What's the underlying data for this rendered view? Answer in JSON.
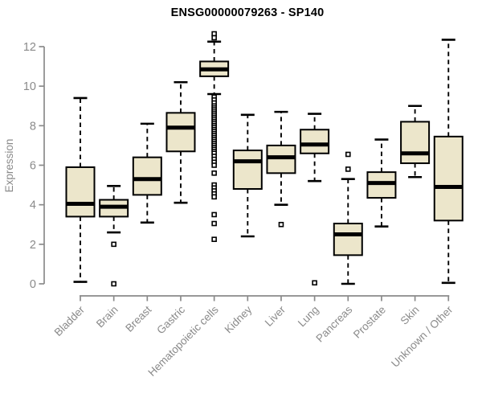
{
  "chart_data": {
    "type": "boxplot",
    "title": "ENSG00000079263 - SP140",
    "ylabel": "Expression",
    "xlabel": "",
    "ylim": [
      -0.2,
      12.8
    ],
    "yticks": [
      0,
      2,
      4,
      6,
      8,
      10,
      12
    ],
    "grid": false,
    "legend": false,
    "box_fill": "#ece6cb",
    "box_stroke": "#000000",
    "axis_color": "#8a8a8a",
    "categories": [
      "Bladder",
      "Brain",
      "Breast",
      "Gastric",
      "Hematopoietic cells",
      "Kidney",
      "Liver",
      "Lung",
      "Pancreas",
      "Prostate",
      "Skin",
      "Unknown / Other"
    ],
    "boxes": [
      {
        "category": "Bladder",
        "whisker_low": 0.1,
        "q1": 3.4,
        "median": 4.05,
        "q3": 5.9,
        "whisker_high": 9.4,
        "outliers": []
      },
      {
        "category": "Brain",
        "whisker_low": 2.6,
        "q1": 3.4,
        "median": 3.9,
        "q3": 4.25,
        "whisker_high": 4.95,
        "outliers": [
          2.0,
          0.0
        ]
      },
      {
        "category": "Breast",
        "whisker_low": 3.1,
        "q1": 4.5,
        "median": 5.3,
        "q3": 6.4,
        "whisker_high": 8.1,
        "outliers": []
      },
      {
        "category": "Gastric",
        "whisker_low": 4.1,
        "q1": 6.7,
        "median": 7.9,
        "q3": 8.65,
        "whisker_high": 10.2,
        "outliers": []
      },
      {
        "category": "Hematopoietic cells",
        "whisker_low": 9.6,
        "q1": 10.5,
        "median": 10.85,
        "q3": 11.25,
        "whisker_high": 12.25,
        "outliers": [
          12.65,
          12.45,
          9.45,
          9.3,
          9.15,
          9.0,
          8.9,
          8.8,
          8.7,
          8.6,
          8.5,
          8.4,
          8.3,
          8.2,
          8.1,
          8.0,
          7.9,
          7.8,
          7.7,
          7.6,
          7.5,
          7.4,
          7.3,
          7.2,
          7.1,
          7.0,
          6.9,
          6.8,
          6.7,
          6.6,
          6.45,
          6.3,
          6.15,
          6.0,
          5.6,
          5.0,
          4.85,
          4.7,
          4.55,
          4.4,
          3.5,
          3.05,
          2.25
        ]
      },
      {
        "category": "Kidney",
        "whisker_low": 2.4,
        "q1": 4.8,
        "median": 6.2,
        "q3": 6.75,
        "whisker_high": 8.55,
        "outliers": []
      },
      {
        "category": "Liver",
        "whisker_low": 4.0,
        "q1": 5.6,
        "median": 6.4,
        "q3": 7.0,
        "whisker_high": 8.7,
        "outliers": [
          3.0
        ]
      },
      {
        "category": "Lung",
        "whisker_low": 5.2,
        "q1": 6.6,
        "median": 7.05,
        "q3": 7.8,
        "whisker_high": 8.6,
        "outliers": [
          0.05
        ]
      },
      {
        "category": "Pancreas",
        "whisker_low": 0.0,
        "q1": 1.45,
        "median": 2.5,
        "q3": 3.05,
        "whisker_high": 5.3,
        "outliers": [
          6.55,
          5.8
        ]
      },
      {
        "category": "Prostate",
        "whisker_low": 2.9,
        "q1": 4.35,
        "median": 5.1,
        "q3": 5.65,
        "whisker_high": 7.3,
        "outliers": []
      },
      {
        "category": "Skin",
        "whisker_low": 5.4,
        "q1": 6.1,
        "median": 6.6,
        "q3": 8.2,
        "whisker_high": 9.0,
        "outliers": []
      },
      {
        "category": "Unknown / Other",
        "whisker_low": 0.05,
        "q1": 3.2,
        "median": 4.9,
        "q3": 7.45,
        "whisker_high": 12.35,
        "outliers": []
      }
    ]
  }
}
